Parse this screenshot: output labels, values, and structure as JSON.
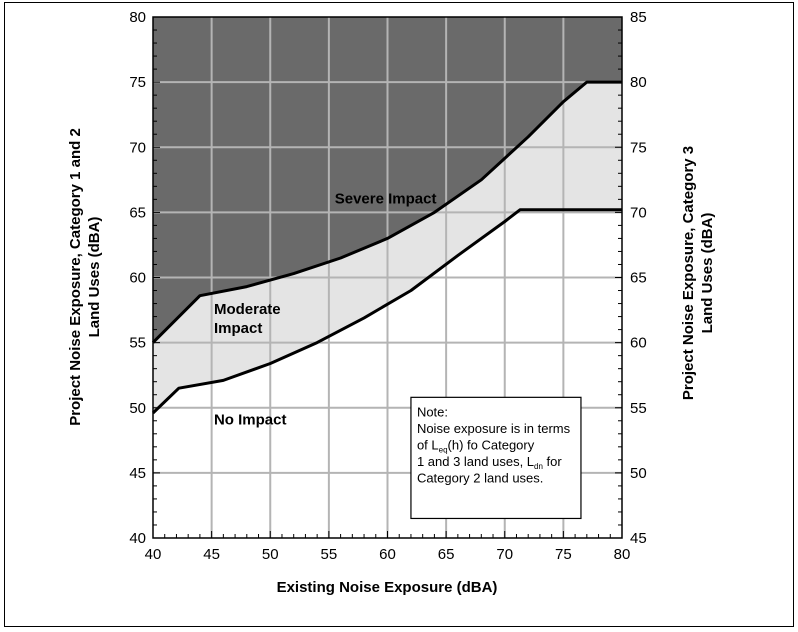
{
  "chart_data": {
    "type": "area",
    "title": "",
    "xlabel": "Existing Noise Exposure (dBA)",
    "ylabel": "Project Noise Exposure, Category 1 and 2 Land Uses (dBA)",
    "y2label": "Project Noise Exposure, Category 3 Land Uses (dBA)",
    "xlim": [
      40,
      80
    ],
    "ylim": [
      40,
      80
    ],
    "y2lim": [
      45,
      85
    ],
    "x_ticks": [
      40,
      45,
      50,
      55,
      60,
      65,
      70,
      75,
      80
    ],
    "y_ticks": [
      40,
      45,
      50,
      55,
      60,
      65,
      70,
      75,
      80
    ],
    "y2_ticks": [
      45,
      50,
      55,
      60,
      65,
      70,
      75,
      80,
      85
    ],
    "grid": true,
    "regions": [
      {
        "name": "Severe Impact",
        "color": "#6a6a6a"
      },
      {
        "name": "Moderate Impact",
        "color": "#e4e4e4"
      },
      {
        "name": "No Impact",
        "color": "#ffffff"
      }
    ],
    "series": [
      {
        "name": "",
        "x": [
          40,
          44,
          48,
          52,
          56,
          60,
          64,
          68,
          72,
          75,
          77,
          80
        ],
        "y": [
          55,
          58.6,
          59.3,
          60.3,
          61.5,
          63,
          65,
          67.5,
          70.8,
          73.5,
          75,
          75
        ]
      },
      {
        "name": "",
        "x": [
          40,
          42.2,
          46,
          50,
          54,
          58,
          62,
          66,
          70,
          71.3,
          80
        ],
        "y": [
          49.6,
          51.5,
          52.1,
          53.4,
          55,
          56.9,
          59,
          61.7,
          64.3,
          65.2,
          65.2
        ]
      }
    ],
    "annotations": [
      {
        "lines": [
          "Severe Impact"
        ],
        "x": 55.5,
        "y": 65.7
      },
      {
        "lines": [
          "Moderate",
          "Impact"
        ],
        "x": 45.2,
        "y": 57.2
      },
      {
        "lines": [
          "No Impact"
        ],
        "x": 45.2,
        "y": 48.7
      }
    ],
    "note": {
      "x": [
        62,
        76.5
      ],
      "y": [
        41.5,
        50.8
      ],
      "lines": [
        [
          {
            "t": "Note:"
          }
        ],
        [
          {
            "t": "Noise exposure is in terms"
          }
        ],
        [
          {
            "t": "of L"
          },
          {
            "t": "eq",
            "sub": true
          },
          {
            "t": "(h) fo Category"
          }
        ],
        [
          {
            "t": "1 and 3 land uses, L"
          },
          {
            "t": "dn",
            "sub": true
          },
          {
            "t": " for"
          }
        ],
        [
          {
            "t": "Category 2 land uses."
          }
        ]
      ]
    }
  }
}
